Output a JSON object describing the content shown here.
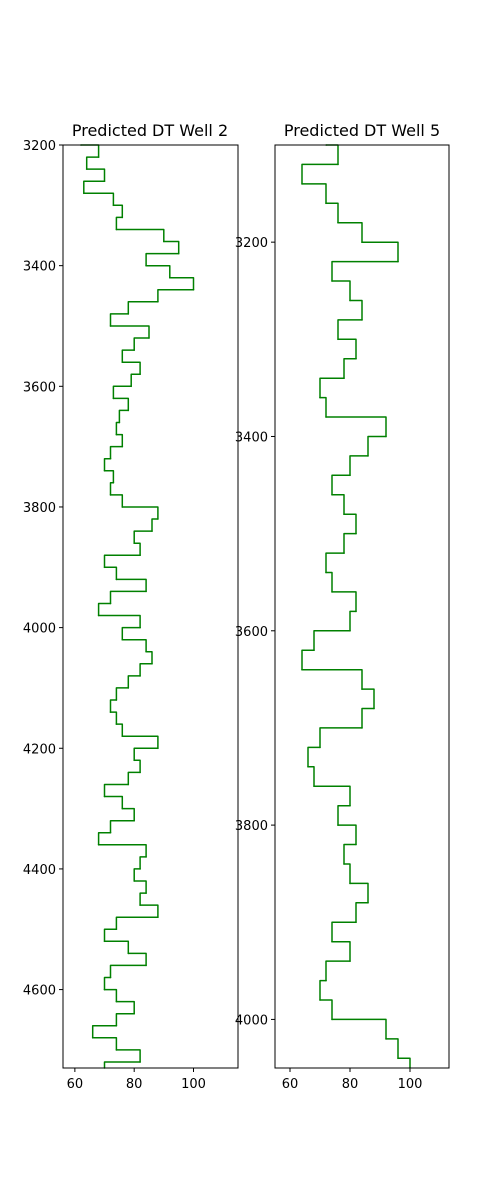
{
  "chart_data": [
    {
      "type": "line",
      "title": "Predicted DT Well 2",
      "xlabel": "",
      "ylabel": "",
      "xlim": [
        56,
        115
      ],
      "ylim": [
        4730,
        3200
      ],
      "y_inverted": true,
      "x_ticks": [
        60,
        80,
        100
      ],
      "y_ticks": [
        3200,
        3400,
        3600,
        3800,
        4000,
        4200,
        4400,
        4600
      ],
      "grid": false,
      "series": [
        {
          "color": "#008000",
          "points": [
            {
              "depth": 3200,
              "dt": 62
            },
            {
              "depth": 3220,
              "dt": 68
            },
            {
              "depth": 3240,
              "dt": 64
            },
            {
              "depth": 3260,
              "dt": 70
            },
            {
              "depth": 3280,
              "dt": 63
            },
            {
              "depth": 3300,
              "dt": 73
            },
            {
              "depth": 3320,
              "dt": 76
            },
            {
              "depth": 3340,
              "dt": 74
            },
            {
              "depth": 3360,
              "dt": 90
            },
            {
              "depth": 3380,
              "dt": 95
            },
            {
              "depth": 3400,
              "dt": 84
            },
            {
              "depth": 3420,
              "dt": 92
            },
            {
              "depth": 3440,
              "dt": 100
            },
            {
              "depth": 3460,
              "dt": 88
            },
            {
              "depth": 3480,
              "dt": 78
            },
            {
              "depth": 3500,
              "dt": 72
            },
            {
              "depth": 3520,
              "dt": 85
            },
            {
              "depth": 3540,
              "dt": 80
            },
            {
              "depth": 3560,
              "dt": 76
            },
            {
              "depth": 3580,
              "dt": 82
            },
            {
              "depth": 3600,
              "dt": 79
            },
            {
              "depth": 3620,
              "dt": 73
            },
            {
              "depth": 3640,
              "dt": 78
            },
            {
              "depth": 3660,
              "dt": 75
            },
            {
              "depth": 3680,
              "dt": 74
            },
            {
              "depth": 3700,
              "dt": 76
            },
            {
              "depth": 3720,
              "dt": 72
            },
            {
              "depth": 3740,
              "dt": 70
            },
            {
              "depth": 3760,
              "dt": 73
            },
            {
              "depth": 3780,
              "dt": 72
            },
            {
              "depth": 3800,
              "dt": 76
            },
            {
              "depth": 3820,
              "dt": 88
            },
            {
              "depth": 3840,
              "dt": 86
            },
            {
              "depth": 3860,
              "dt": 80
            },
            {
              "depth": 3880,
              "dt": 82
            },
            {
              "depth": 3900,
              "dt": 70
            },
            {
              "depth": 3920,
              "dt": 74
            },
            {
              "depth": 3940,
              "dt": 84
            },
            {
              "depth": 3960,
              "dt": 72
            },
            {
              "depth": 3980,
              "dt": 68
            },
            {
              "depth": 4000,
              "dt": 82
            },
            {
              "depth": 4020,
              "dt": 76
            },
            {
              "depth": 4040,
              "dt": 84
            },
            {
              "depth": 4060,
              "dt": 86
            },
            {
              "depth": 4080,
              "dt": 82
            },
            {
              "depth": 4100,
              "dt": 78
            },
            {
              "depth": 4120,
              "dt": 74
            },
            {
              "depth": 4140,
              "dt": 72
            },
            {
              "depth": 4160,
              "dt": 74
            },
            {
              "depth": 4180,
              "dt": 76
            },
            {
              "depth": 4200,
              "dt": 88
            },
            {
              "depth": 4220,
              "dt": 80
            },
            {
              "depth": 4240,
              "dt": 82
            },
            {
              "depth": 4260,
              "dt": 78
            },
            {
              "depth": 4280,
              "dt": 70
            },
            {
              "depth": 4300,
              "dt": 76
            },
            {
              "depth": 4320,
              "dt": 80
            },
            {
              "depth": 4340,
              "dt": 72
            },
            {
              "depth": 4360,
              "dt": 68
            },
            {
              "depth": 4380,
              "dt": 84
            },
            {
              "depth": 4400,
              "dt": 82
            },
            {
              "depth": 4420,
              "dt": 80
            },
            {
              "depth": 4440,
              "dt": 84
            },
            {
              "depth": 4460,
              "dt": 82
            },
            {
              "depth": 4480,
              "dt": 88
            },
            {
              "depth": 4500,
              "dt": 74
            },
            {
              "depth": 4520,
              "dt": 70
            },
            {
              "depth": 4540,
              "dt": 78
            },
            {
              "depth": 4560,
              "dt": 84
            },
            {
              "depth": 4580,
              "dt": 72
            },
            {
              "depth": 4600,
              "dt": 70
            },
            {
              "depth": 4620,
              "dt": 74
            },
            {
              "depth": 4640,
              "dt": 80
            },
            {
              "depth": 4660,
              "dt": 74
            },
            {
              "depth": 4680,
              "dt": 66
            },
            {
              "depth": 4700,
              "dt": 74
            },
            {
              "depth": 4720,
              "dt": 82
            },
            {
              "depth": 4730,
              "dt": 70
            }
          ]
        }
      ]
    },
    {
      "type": "line",
      "title": "Predicted DT Well 5",
      "xlabel": "",
      "ylabel": "",
      "xlim": [
        55,
        113
      ],
      "ylim": [
        4050,
        3100
      ],
      "y_inverted": true,
      "x_ticks": [
        60,
        80,
        100
      ],
      "y_ticks": [
        3200,
        3400,
        3600,
        3800,
        4000
      ],
      "grid": false,
      "series": [
        {
          "color": "#008000",
          "points": [
            {
              "depth": 3100,
              "dt": 72
            },
            {
              "depth": 3120,
              "dt": 76
            },
            {
              "depth": 3140,
              "dt": 64
            },
            {
              "depth": 3160,
              "dt": 72
            },
            {
              "depth": 3180,
              "dt": 76
            },
            {
              "depth": 3200,
              "dt": 84
            },
            {
              "depth": 3220,
              "dt": 96
            },
            {
              "depth": 3240,
              "dt": 74
            },
            {
              "depth": 3260,
              "dt": 80
            },
            {
              "depth": 3280,
              "dt": 84
            },
            {
              "depth": 3300,
              "dt": 76
            },
            {
              "depth": 3320,
              "dt": 82
            },
            {
              "depth": 3340,
              "dt": 78
            },
            {
              "depth": 3360,
              "dt": 70
            },
            {
              "depth": 3380,
              "dt": 72
            },
            {
              "depth": 3400,
              "dt": 92
            },
            {
              "depth": 3420,
              "dt": 86
            },
            {
              "depth": 3440,
              "dt": 80
            },
            {
              "depth": 3460,
              "dt": 74
            },
            {
              "depth": 3480,
              "dt": 78
            },
            {
              "depth": 3500,
              "dt": 82
            },
            {
              "depth": 3520,
              "dt": 78
            },
            {
              "depth": 3540,
              "dt": 72
            },
            {
              "depth": 3560,
              "dt": 74
            },
            {
              "depth": 3580,
              "dt": 82
            },
            {
              "depth": 3600,
              "dt": 80
            },
            {
              "depth": 3620,
              "dt": 68
            },
            {
              "depth": 3640,
              "dt": 64
            },
            {
              "depth": 3660,
              "dt": 84
            },
            {
              "depth": 3680,
              "dt": 88
            },
            {
              "depth": 3700,
              "dt": 84
            },
            {
              "depth": 3720,
              "dt": 70
            },
            {
              "depth": 3740,
              "dt": 66
            },
            {
              "depth": 3760,
              "dt": 68
            },
            {
              "depth": 3780,
              "dt": 80
            },
            {
              "depth": 3800,
              "dt": 76
            },
            {
              "depth": 3820,
              "dt": 82
            },
            {
              "depth": 3840,
              "dt": 78
            },
            {
              "depth": 3860,
              "dt": 80
            },
            {
              "depth": 3880,
              "dt": 86
            },
            {
              "depth": 3900,
              "dt": 82
            },
            {
              "depth": 3920,
              "dt": 74
            },
            {
              "depth": 3940,
              "dt": 80
            },
            {
              "depth": 3960,
              "dt": 72
            },
            {
              "depth": 3980,
              "dt": 70
            },
            {
              "depth": 4000,
              "dt": 74
            },
            {
              "depth": 4020,
              "dt": 92
            },
            {
              "depth": 4040,
              "dt": 96
            },
            {
              "depth": 4050,
              "dt": 100
            }
          ]
        }
      ]
    }
  ]
}
